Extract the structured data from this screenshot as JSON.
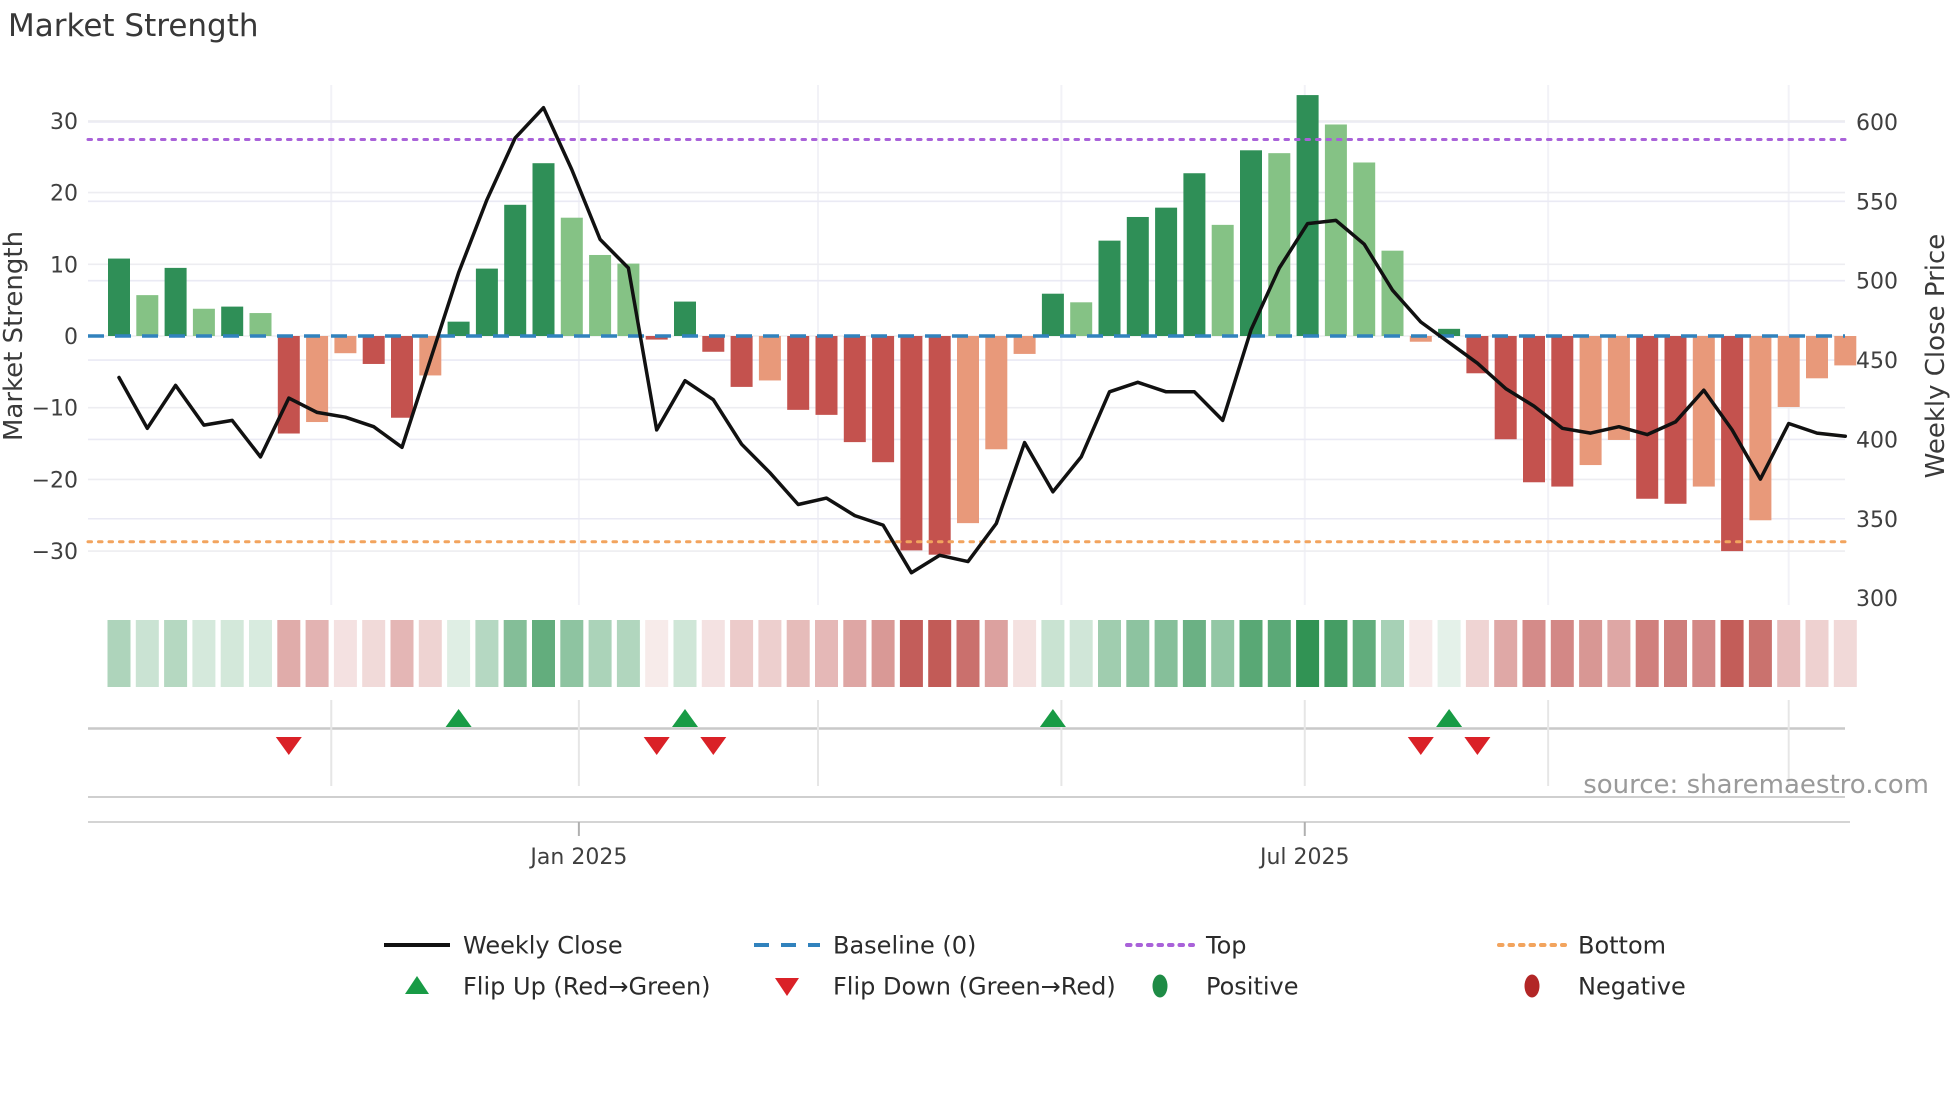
{
  "title": "Market Strength",
  "source": "source: sharemaestro.com",
  "axes": {
    "left_label": "Market Strength",
    "right_label": "Weekly Close Price",
    "left_ticks": [
      30,
      20,
      10,
      0,
      -10,
      -20,
      -30
    ],
    "right_ticks": [
      600,
      550,
      500,
      450,
      400,
      350,
      300
    ],
    "x_ticks": [
      {
        "label": "Jan 2025",
        "week": 17.25
      },
      {
        "label": "Jul 2025",
        "week": 42.9
      }
    ]
  },
  "legend": {
    "rows": [
      [
        {
          "label": "Weekly Close",
          "swatch": "line-black"
        },
        {
          "label": "Baseline (0)",
          "swatch": "dash-blue"
        },
        {
          "label": "Top",
          "swatch": "dot-purple"
        },
        {
          "label": "Bottom",
          "swatch": "dot-orange"
        }
      ],
      [
        {
          "label": "Flip Up (Red→Green)",
          "swatch": "tri-up"
        },
        {
          "label": "Flip Down (Green→Red)",
          "swatch": "tri-down"
        },
        {
          "label": "Positive",
          "swatch": "oval-green"
        },
        {
          "label": "Negative",
          "swatch": "oval-red"
        }
      ]
    ]
  },
  "colors": {
    "bar_pos_strong": "#2f8f57",
    "bar_pos_light": "#85c285",
    "bar_neg_strong": "#c4524e",
    "bar_neg_light": "#e8997a",
    "line": "#111111",
    "baseline": "#3182bd",
    "top_line": "#a962d9",
    "bottom_line": "#f2a45e",
    "flip_up": "#189b45",
    "flip_down": "#da2127",
    "positive_dot": "#1e8b45",
    "negative_dot": "#b22626",
    "heat_pos": "#2d9150",
    "heat_neg": "#bc4b47"
  },
  "chart_data": {
    "type": "combo",
    "weeks": 62,
    "baseline": 0,
    "top_level": 27.4,
    "bottom_level": -28.7,
    "strength_ylim": [
      -34,
      35
    ],
    "price_ylim": [
      295,
      620
    ],
    "series": [
      {
        "name": "Market Strength",
        "type": "bar",
        "values": [
          10.8,
          5.7,
          9.5,
          3.8,
          4.1,
          3.2,
          -13.6,
          -12.0,
          -2.4,
          -3.9,
          -11.4,
          -5.5,
          2.0,
          9.4,
          18.3,
          24.1,
          16.5,
          11.3,
          10.1,
          -0.5,
          4.8,
          -2.2,
          -7.1,
          -6.2,
          -10.3,
          -11.0,
          -14.8,
          -17.6,
          -29.9,
          -30.5,
          -26.1,
          -15.8,
          -2.5,
          5.9,
          4.7,
          13.3,
          16.6,
          17.9,
          22.7,
          15.5,
          25.9,
          25.5,
          33.6,
          29.5,
          24.2,
          11.9,
          -0.8,
          1.0,
          -5.2,
          -14.4,
          -20.4,
          -21.0,
          -18.0,
          -14.5,
          -22.7,
          -23.4,
          -21.0,
          -30.0,
          -25.7,
          -9.9,
          -5.9,
          -4.1
        ],
        "shades": [
          "d",
          "l",
          "d",
          "l",
          "d",
          "l",
          "d",
          "l",
          "l",
          "d",
          "d",
          "l",
          "d",
          "d",
          "d",
          "d",
          "l",
          "l",
          "l",
          "d",
          "d",
          "d",
          "d",
          "l",
          "d",
          "d",
          "d",
          "d",
          "d",
          "d",
          "l",
          "l",
          "l",
          "d",
          "l",
          "d",
          "d",
          "d",
          "d",
          "l",
          "d",
          "l",
          "d",
          "l",
          "l",
          "l",
          "l",
          "d",
          "d",
          "d",
          "d",
          "d",
          "l",
          "l",
          "d",
          "d",
          "l",
          "d",
          "l",
          "l",
          "l",
          "l"
        ]
      },
      {
        "name": "Weekly Close",
        "type": "line",
        "values": [
          439,
          407,
          434,
          409,
          412,
          389,
          426,
          417,
          414,
          408,
          395,
          450,
          505,
          551,
          590,
          609,
          570,
          526,
          508,
          406,
          437,
          425,
          397,
          379,
          359,
          363,
          352,
          346,
          316,
          327,
          323,
          347,
          398,
          367,
          389,
          430,
          436,
          430,
          430,
          412,
          469,
          508,
          536,
          538,
          523,
          494,
          474,
          461,
          448,
          432,
          421,
          407,
          404,
          408,
          403,
          411,
          431,
          406,
          375,
          410,
          404,
          402
        ]
      },
      {
        "name": "Flip Up (Red→Green)",
        "type": "scatter-up",
        "weeks": [
          13,
          21,
          34,
          48
        ]
      },
      {
        "name": "Flip Down (Green→Red)",
        "type": "scatter-down",
        "weeks": [
          7,
          20,
          22,
          47,
          49
        ]
      }
    ],
    "heatmap": {
      "note": "one cell per week, hue = sign of strength, intensity = |strength|"
    },
    "grid_weeks_vlines": [
      8.5,
      17.25,
      25.7,
      34.3,
      42.9,
      51.5,
      60.0
    ]
  }
}
